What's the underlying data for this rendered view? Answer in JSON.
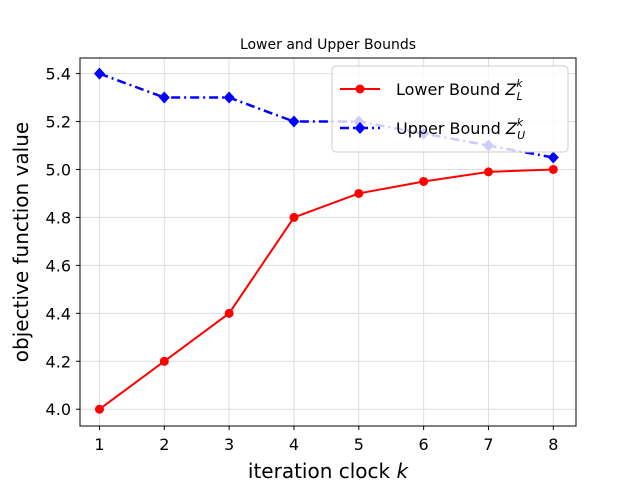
{
  "chart_data": {
    "type": "line",
    "title": "Lower and Upper Bounds",
    "xlabel": "iteration clock",
    "xlabel_var": "k",
    "ylabel": "objective function value",
    "x": [
      1,
      2,
      3,
      4,
      5,
      6,
      7,
      8
    ],
    "xlim": [
      0.7,
      8.35
    ],
    "ylim": [
      3.93,
      5.465
    ],
    "xticks": [
      "1",
      "2",
      "3",
      "4",
      "5",
      "6",
      "7",
      "8"
    ],
    "yticks": [
      "4.0",
      "4.2",
      "4.4",
      "4.6",
      "4.8",
      "5.0",
      "5.2",
      "5.4"
    ],
    "ytick_values": [
      4.0,
      4.2,
      4.4,
      4.6,
      4.8,
      5.0,
      5.2,
      5.4
    ],
    "grid": true,
    "legend_position": "top-right",
    "series": [
      {
        "name": "Lower Bound",
        "var": "Z",
        "sup": "k",
        "sub": "L",
        "values": [
          4.0,
          4.2,
          4.4,
          4.8,
          4.9,
          4.95,
          4.99,
          5.0
        ],
        "color": "#ff0000",
        "line_style": "solid",
        "marker": "circle"
      },
      {
        "name": "Upper Bound",
        "var": "Z",
        "sup": "k",
        "sub": "U",
        "values": [
          5.4,
          5.3,
          5.3,
          5.2,
          5.2,
          5.15,
          5.1,
          5.05
        ],
        "color": "#0000ff",
        "line_style": "dashdot",
        "marker": "diamond"
      }
    ]
  }
}
